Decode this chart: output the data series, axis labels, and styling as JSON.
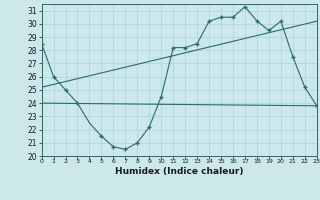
{
  "xlabel": "Humidex (Indice chaleur)",
  "bg_color": "#cce8eb",
  "grid_color": "#aed4d8",
  "line_color": "#2a6b6b",
  "xlim": [
    0,
    23
  ],
  "ylim": [
    20,
    31.5
  ],
  "xticks": [
    0,
    1,
    2,
    3,
    4,
    5,
    6,
    7,
    8,
    9,
    10,
    11,
    12,
    13,
    14,
    15,
    16,
    17,
    18,
    19,
    20,
    21,
    22,
    23
  ],
  "yticks": [
    20,
    21,
    22,
    23,
    24,
    25,
    26,
    27,
    28,
    29,
    30,
    31
  ],
  "series1_x": [
    0,
    1,
    2,
    3,
    4,
    5,
    6,
    7,
    8,
    9,
    10,
    11,
    12,
    13,
    14,
    15,
    16,
    17,
    18,
    19,
    20,
    21,
    22,
    23
  ],
  "series1_y": [
    28.5,
    26.0,
    25.0,
    24.0,
    22.5,
    21.5,
    20.7,
    20.5,
    21.0,
    22.2,
    24.5,
    28.2,
    28.2,
    28.5,
    30.2,
    30.5,
    30.5,
    31.3,
    30.2,
    29.5,
    30.2,
    27.5,
    25.2,
    23.8
  ],
  "series2_x": [
    0,
    23
  ],
  "series2_y": [
    24.0,
    23.8
  ],
  "series3_x": [
    0,
    23
  ],
  "series3_y": [
    25.2,
    30.2
  ],
  "marker_x": [
    0,
    1,
    2,
    3,
    5,
    6,
    7,
    8,
    9,
    10,
    11,
    12,
    13,
    14,
    15,
    16,
    17,
    18,
    19,
    20,
    21,
    22,
    23
  ],
  "marker_y": [
    28.5,
    26.0,
    25.0,
    24.0,
    21.5,
    20.7,
    20.5,
    21.0,
    22.2,
    24.5,
    28.2,
    28.2,
    28.5,
    30.2,
    30.5,
    30.5,
    31.3,
    30.2,
    29.5,
    30.2,
    27.5,
    25.2,
    23.8
  ]
}
